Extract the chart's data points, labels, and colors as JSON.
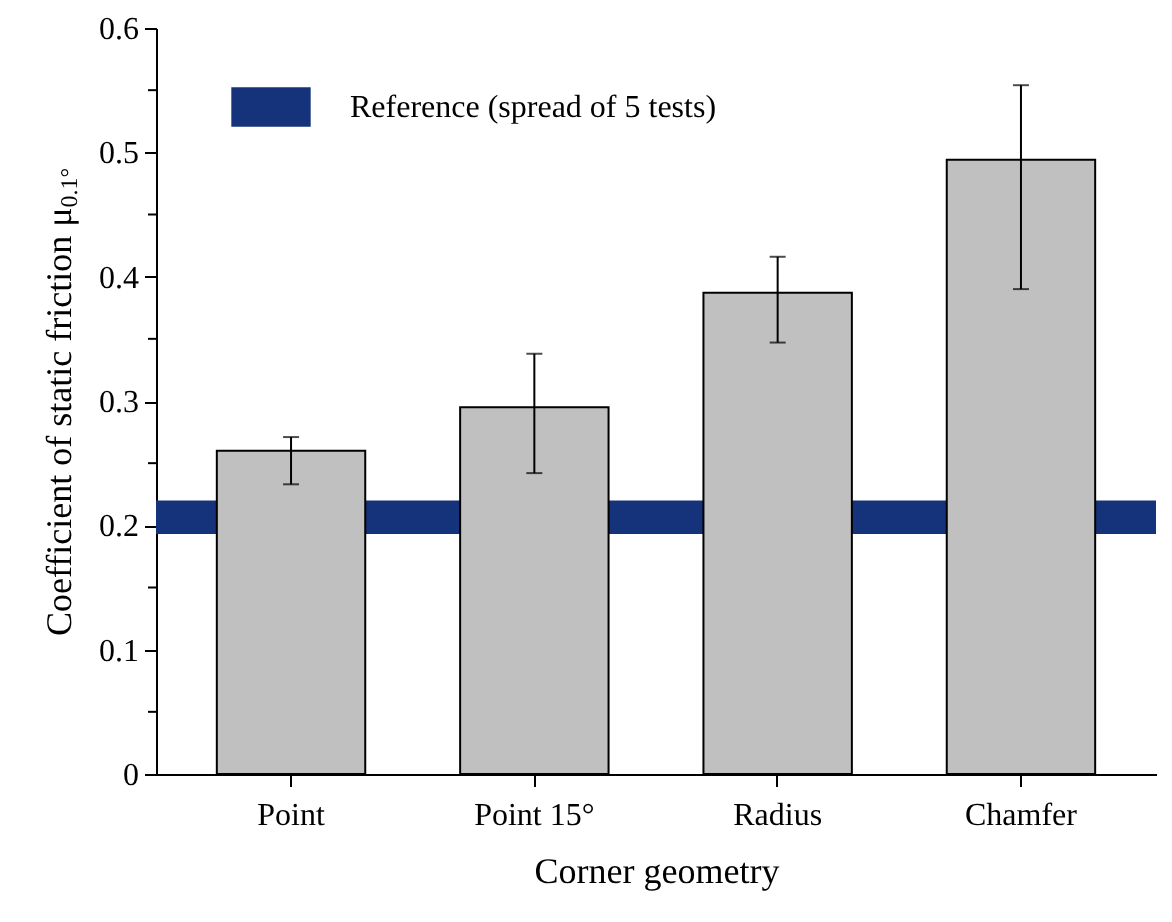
{
  "chart_data": {
    "type": "bar",
    "xlabel": "Corner geometry",
    "ylabel": "Coefficient of static friction μ$_{0.1°}$",
    "categories": [
      "Point",
      "Point 15°",
      "Radius",
      "Chamfer"
    ],
    "values": [
      0.26,
      0.295,
      0.387,
      0.494
    ],
    "errors": [
      [
        0.233,
        0.271
      ],
      [
        0.242,
        0.338
      ],
      [
        0.347,
        0.416
      ],
      [
        0.39,
        0.554
      ]
    ],
    "color": "#c0c0c0",
    "ylim": [
      0,
      0.6
    ],
    "yticks": [
      0,
      {
        "value": 0.05,
        "label": null
      },
      0.1,
      {
        "value": 0.15,
        "label": null
      },
      0.2,
      {
        "value": 0.25,
        "label": null
      },
      0.3,
      {
        "value": 0.35,
        "label": null
      },
      0.4,
      {
        "value": 0.45,
        "label": null
      },
      0.5,
      {
        "value": 0.55,
        "label": null
      },
      0.6
    ],
    "bands": [
      {
        "axis": "y",
        "from": 0.193,
        "to": 0.22,
        "label": "Reference (spread of 5 tests)",
        "color": "#14337a"
      }
    ],
    "legend": "top left",
    "grid": false
  }
}
